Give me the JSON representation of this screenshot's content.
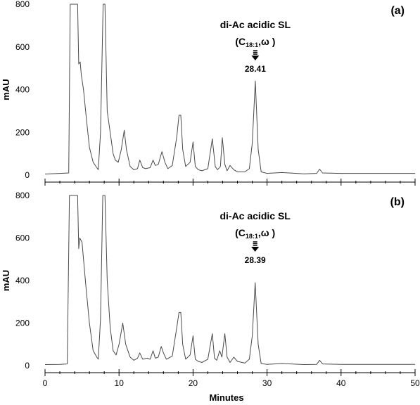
{
  "chart_data": [
    {
      "type": "line",
      "panel_label": "(a)",
      "xlabel": "",
      "ylabel": "mAU",
      "xlim": [
        0,
        50
      ],
      "ylim": [
        0,
        800
      ],
      "yticks": [
        0,
        200,
        400,
        600,
        800
      ],
      "annotation": {
        "name": "di-Ac acidic SL",
        "formula_prefix": "(C",
        "formula_sub": "18:1",
        "formula_suffix": ",ω )",
        "retention_time": "28.41",
        "x": 28.41
      },
      "series": [
        {
          "color": "#4a4a4a",
          "x": [
            0,
            2,
            3.2,
            3.4,
            3.6,
            4.4,
            4.55,
            4.75,
            4.9,
            5.2,
            5.6,
            6.0,
            6.5,
            7.0,
            7.2,
            7.5,
            7.85,
            8.1,
            8.4,
            8.8,
            9.2,
            9.5,
            9.9,
            10.3,
            10.7,
            11.0,
            11.5,
            12.0,
            12.5,
            12.8,
            13.2,
            13.6,
            14.2,
            14.6,
            14.9,
            15.3,
            15.8,
            16.2,
            16.6,
            17.2,
            17.8,
            18.1,
            18.35,
            18.6,
            19.0,
            19.6,
            20.0,
            20.3,
            20.7,
            21.2,
            22.0,
            22.6,
            23.0,
            23.3,
            23.7,
            23.95,
            24.3,
            24.6,
            25.0,
            25.5,
            26.0,
            27.0,
            27.6,
            28.0,
            28.41,
            28.8,
            29.2,
            30.0,
            32.0,
            35.0,
            36.7,
            37.1,
            37.5,
            40.0,
            43.0,
            46.0,
            49.5,
            50.0
          ],
          "y": [
            5,
            8,
            10,
            800,
            800,
            800,
            520,
            530,
            470,
            400,
            260,
            130,
            60,
            35,
            25,
            200,
            800,
            800,
            300,
            200,
            100,
            70,
            60,
            120,
            210,
            120,
            40,
            25,
            30,
            70,
            35,
            30,
            35,
            70,
            45,
            50,
            110,
            60,
            30,
            45,
            180,
            280,
            280,
            120,
            40,
            60,
            155,
            40,
            25,
            20,
            30,
            170,
            40,
            25,
            40,
            175,
            50,
            20,
            45,
            25,
            15,
            15,
            30,
            150,
            440,
            120,
            15,
            8,
            12,
            6,
            8,
            28,
            10,
            8,
            8,
            8,
            8,
            8
          ]
        }
      ]
    },
    {
      "type": "line",
      "panel_label": "(b)",
      "xlabel": "Minutes",
      "ylabel": "mAU",
      "xlim": [
        0,
        50
      ],
      "ylim": [
        0,
        800
      ],
      "xticks": [
        0,
        10,
        20,
        30,
        40,
        50
      ],
      "yticks": [
        0,
        200,
        400,
        600,
        800
      ],
      "annotation": {
        "name": "di-Ac acidic SL",
        "formula_prefix": "(C",
        "formula_sub": "18:1",
        "formula_suffix": ",ω )",
        "retention_time": "28.39",
        "x": 28.39
      },
      "series": [
        {
          "color": "#4a4a4a",
          "x": [
            0,
            2,
            3.0,
            3.3,
            3.5,
            4.4,
            4.55,
            4.7,
            5.0,
            5.5,
            6.0,
            6.5,
            7.0,
            7.2,
            7.5,
            7.8,
            8.1,
            8.4,
            8.8,
            9.2,
            9.6,
            10.0,
            10.5,
            10.9,
            11.5,
            12.0,
            12.5,
            12.8,
            13.2,
            13.8,
            14.2,
            14.6,
            14.9,
            15.3,
            15.7,
            16.0,
            16.4,
            17.2,
            17.8,
            18.1,
            18.35,
            18.6,
            19.0,
            19.6,
            20.0,
            20.3,
            20.7,
            21.2,
            22.0,
            22.6,
            22.9,
            23.2,
            23.6,
            23.9,
            24.3,
            24.6,
            25.0,
            25.5,
            26.0,
            27.0,
            27.6,
            28.0,
            28.39,
            28.8,
            29.2,
            30.0,
            32.0,
            35.0,
            36.7,
            37.1,
            37.5,
            40.0,
            43.0,
            46.0,
            49.5,
            50.0
          ],
          "y": [
            5,
            6,
            8,
            800,
            800,
            800,
            550,
            600,
            580,
            380,
            200,
            70,
            40,
            30,
            220,
            800,
            800,
            400,
            180,
            70,
            50,
            100,
            200,
            100,
            40,
            25,
            35,
            60,
            30,
            35,
            30,
            70,
            35,
            40,
            90,
            60,
            30,
            45,
            180,
            250,
            250,
            100,
            30,
            50,
            140,
            30,
            20,
            15,
            30,
            150,
            35,
            25,
            70,
            40,
            150,
            40,
            15,
            40,
            20,
            12,
            30,
            140,
            390,
            100,
            10,
            6,
            10,
            5,
            6,
            25,
            8,
            6,
            6,
            6,
            6,
            6
          ]
        }
      ]
    }
  ]
}
